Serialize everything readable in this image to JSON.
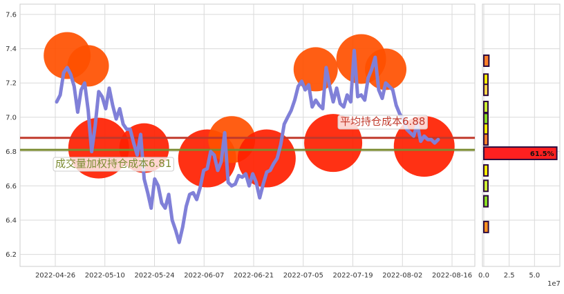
{
  "chart_data": {
    "type": "line",
    "main_panel": {
      "x_ticks": [
        "2022-04-26",
        "2022-05-10",
        "2022-05-24",
        "2022-06-07",
        "2022-06-21",
        "2022-07-05",
        "2022-07-19",
        "2022-08-02",
        "2022-08-16"
      ],
      "y_ticks": [
        "6.2",
        "6.4",
        "6.6",
        "6.8",
        "7.0",
        "7.2",
        "7.4",
        "7.6"
      ],
      "ylim": [
        6.13,
        7.66
      ],
      "series": [
        {
          "values": [
            7.09,
            7.13,
            7.26,
            7.29,
            7.25,
            7.18,
            7.03,
            7.16,
            7.2,
            7.04,
            6.8,
            6.95,
            7.15,
            7.12,
            7.05,
            7.17,
            7.07,
            6.99,
            7.05,
            6.96,
            6.93,
            6.93,
            6.85,
            6.78,
            6.9,
            6.64,
            6.56,
            6.47,
            6.64,
            6.6,
            6.5,
            6.47,
            6.55,
            6.4,
            6.34,
            6.27,
            6.36,
            6.48,
            6.55,
            6.56,
            6.52,
            6.59,
            6.69,
            6.7,
            6.8,
            6.78,
            6.69,
            6.74,
            6.91,
            6.62,
            6.6,
            6.61,
            6.66,
            6.65,
            6.67,
            6.6,
            6.67,
            6.62,
            6.53,
            6.61,
            6.68,
            6.69,
            6.73,
            6.76,
            6.84,
            6.96,
            7.0,
            7.04,
            7.1,
            7.18,
            7.21,
            7.16,
            7.19,
            7.06,
            7.1,
            7.07,
            7.05,
            7.29,
            7.18,
            7.09,
            7.17,
            7.08,
            7.06,
            7.13,
            7.09,
            7.39,
            7.12,
            7.13,
            7.1,
            7.23,
            7.28,
            7.35,
            7.16,
            7.11,
            7.2,
            7.18,
            7.16,
            7.07,
            7.02,
            6.99,
            6.93,
            6.91,
            6.89,
            6.96,
            6.86,
            6.89,
            6.87,
            6.87,
            6.85,
            6.87
          ]
        }
      ],
      "bubbles": [
        {
          "label": "w",
          "x_index": 3,
          "y": 7.36,
          "size": 34,
          "color": "#ff5000"
        },
        {
          "label": "w",
          "x_index": 9,
          "y": 7.3,
          "size": 30,
          "color": "#ff5000"
        },
        {
          "label": "w",
          "x_index": 12,
          "y": 6.82,
          "size": 44,
          "color": "#ff2000"
        },
        {
          "label": "w",
          "x_index": 25,
          "y": 6.82,
          "size": 36,
          "color": "#ff2000"
        },
        {
          "label": "w",
          "x_index": 43,
          "y": 6.76,
          "size": 42,
          "color": "#ff2000"
        },
        {
          "label": "w",
          "x_index": 50,
          "y": 6.87,
          "size": 34,
          "color": "#ff5000"
        },
        {
          "label": "w",
          "x_index": 60,
          "y": 6.76,
          "size": 42,
          "color": "#ff2000"
        },
        {
          "label": "w",
          "x_index": 74,
          "y": 7.28,
          "size": 32,
          "color": "#ff5000"
        },
        {
          "label": "w",
          "x_index": 79,
          "y": 6.85,
          "size": 42,
          "color": "#ff2000"
        },
        {
          "label": "w",
          "x_index": 87,
          "y": 7.34,
          "size": 36,
          "color": "#ff5000"
        },
        {
          "label": "w",
          "x_index": 94,
          "y": 7.28,
          "size": 30,
          "color": "#ff5000"
        },
        {
          "label": "w",
          "x_index": 105,
          "y": 6.83,
          "size": 44,
          "color": "#ff2000"
        }
      ],
      "hlines": [
        {
          "name": "平均持仓成本",
          "label": "平均持仓成本6.88",
          "value": 6.88,
          "color": "#c0392b"
        },
        {
          "name": "成交量加权持仓成本",
          "label": "成交量加权持仓成本6.81",
          "value": 6.81,
          "color": "#7b8c32"
        }
      ]
    },
    "side_panel": {
      "type": "bar",
      "orientation": "horizontal",
      "x_ticks": [
        "0.0",
        "2.5",
        "5.0"
      ],
      "x_unit": "1e7",
      "xlim": [
        0,
        7.5
      ],
      "bars": [
        {
          "price": 7.33,
          "value": 0.5,
          "color": "#ff7f2a"
        },
        {
          "price": 7.22,
          "value": 0.4,
          "color": "#ffee00"
        },
        {
          "price": 7.16,
          "value": 0.4,
          "color": "#ffd54a"
        },
        {
          "price": 7.06,
          "value": 0.3,
          "color": "#ccee33"
        },
        {
          "price": 6.99,
          "value": 0.3,
          "color": "#88dd22"
        },
        {
          "price": 6.93,
          "value": 0.35,
          "color": "#ffee00"
        },
        {
          "price": 6.87,
          "value": 0.4,
          "color": "#ff7f2a"
        },
        {
          "price": 6.79,
          "value": 7.2,
          "color": "#ff2020",
          "label": "61.5%"
        },
        {
          "price": 6.69,
          "value": 0.3,
          "color": "#ffee00"
        },
        {
          "price": 6.6,
          "value": 0.3,
          "color": "#ccee33"
        },
        {
          "price": 6.51,
          "value": 0.25,
          "color": "#88dd22"
        },
        {
          "price": 6.36,
          "value": 0.45,
          "color": "#ff9020"
        }
      ]
    }
  }
}
